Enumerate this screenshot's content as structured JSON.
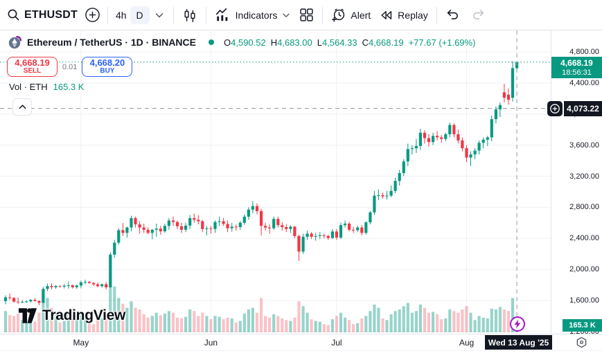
{
  "toolbar": {
    "symbol": "ETHUSDT",
    "timeframe_4h": "4h",
    "timeframe_daily": "D",
    "indicators_label": "Indicators",
    "alert_label": "Alert",
    "replay_label": "Replay"
  },
  "header": {
    "title": "Ethereum / TetherUS · 1D · BINANCE",
    "ohlc": {
      "o_label": "O",
      "o": "4,590.52",
      "h_label": "H",
      "h": "4,683.00",
      "l_label": "L",
      "l": "4,564.33",
      "c_label": "C",
      "c": "4,668.19",
      "change": "+77.67 (+1.69%)"
    }
  },
  "order_panel": {
    "sell_price": "4,668.19",
    "sell_label": "SELL",
    "spread": "0.01",
    "buy_price": "4,668.20",
    "buy_label": "BUY"
  },
  "volume_row": {
    "label": "Vol · ETH",
    "value": "165.3 K"
  },
  "price_axis": {
    "labels": [
      "4,800.00",
      "4,400.00",
      "4,000.00",
      "3,600.00",
      "3,200.00",
      "2,800.00",
      "2,400.00",
      "2,000.00",
      "1,600.00",
      "1,200.00"
    ],
    "last_price": "4,668.19",
    "countdown": "18:56:31",
    "crosshair_price": "4,073.22",
    "volume_value": "165.3 K"
  },
  "time_axis": {
    "months": [
      "May",
      "Jun",
      "Jul",
      "Aug"
    ],
    "crosshair_date": "Wed 13 Aug '25"
  },
  "watermark": "TradingView",
  "colors": {
    "up": "#089981",
    "down": "#f23645",
    "buy_blue": "#2962ff",
    "sell_red": "#f23645",
    "crosshair": "#9598a1",
    "badge_dark": "#131722",
    "grid": "#eef0f3",
    "vol_up": "rgba(8,153,129,0.42)",
    "vol_down": "rgba(242,54,69,0.30)"
  },
  "chart_data": {
    "type": "candlestick",
    "symbol": "ETHUSDT",
    "exchange": "BINANCE",
    "interval": "1D",
    "title": "Ethereum / TetherUS",
    "start_date": "2025-04-13",
    "end_date": "2025-08-13",
    "visible_price_range": [
      1150,
      4850
    ],
    "price_gridlines": [
      4800,
      4400,
      4000,
      3600,
      3200,
      2800,
      2400,
      2000,
      1600,
      1200
    ],
    "month_ticks": [
      {
        "label": "May",
        "index": 18
      },
      {
        "label": "Jun",
        "index": 49
      },
      {
        "label": "Jul",
        "index": 79
      },
      {
        "label": "Aug",
        "index": 110
      }
    ],
    "last_price": 4668.19,
    "last_volume_k": 165.3,
    "crosshair": {
      "price": 4073.22,
      "date": "Wed 13 Aug '25",
      "index": 122
    },
    "volume_unit": "K ETH",
    "candles_format": [
      "open",
      "high",
      "low",
      "close",
      "volume_k"
    ],
    "candles": [
      [
        1592,
        1666,
        1551,
        1641,
        260
      ],
      [
        1641,
        1690,
        1605,
        1632,
        210
      ],
      [
        1632,
        1645,
        1572,
        1585,
        200
      ],
      [
        1585,
        1640,
        1553,
        1577,
        230
      ],
      [
        1577,
        1605,
        1566,
        1583,
        150
      ],
      [
        1583,
        1600,
        1567,
        1588,
        120
      ],
      [
        1588,
        1620,
        1576,
        1608,
        110
      ],
      [
        1608,
        1630,
        1585,
        1594,
        130
      ],
      [
        1594,
        1600,
        1540,
        1571,
        240
      ],
      [
        1571,
        1774,
        1566,
        1749,
        480
      ],
      [
        1749,
        1818,
        1722,
        1786,
        420
      ],
      [
        1786,
        1822,
        1741,
        1771,
        300
      ],
      [
        1771,
        1800,
        1751,
        1786,
        250
      ],
      [
        1786,
        1794,
        1767,
        1779,
        120
      ],
      [
        1779,
        1812,
        1756,
        1790,
        140
      ],
      [
        1790,
        1844,
        1753,
        1796,
        260
      ],
      [
        1796,
        1807,
        1754,
        1771,
        200
      ],
      [
        1771,
        1805,
        1750,
        1793,
        220
      ],
      [
        1793,
        1856,
        1757,
        1834,
        240
      ],
      [
        1834,
        1868,
        1810,
        1839,
        200
      ],
      [
        1839,
        1852,
        1818,
        1825,
        110
      ],
      [
        1825,
        1838,
        1786,
        1808,
        100
      ],
      [
        1808,
        1832,
        1770,
        1784,
        160
      ],
      [
        1784,
        1818,
        1765,
        1810,
        170
      ],
      [
        1810,
        1838,
        1744,
        1770,
        230
      ],
      [
        1770,
        2220,
        1765,
        2190,
        620
      ],
      [
        2190,
        2380,
        2150,
        2345,
        560
      ],
      [
        2345,
        2530,
        2320,
        2506,
        420
      ],
      [
        2506,
        2598,
        2430,
        2470,
        350
      ],
      [
        2470,
        2550,
        2410,
        2540,
        300
      ],
      [
        2540,
        2691,
        2490,
        2660,
        380
      ],
      [
        2660,
        2680,
        2540,
        2580,
        300
      ],
      [
        2580,
        2620,
        2460,
        2540,
        280
      ],
      [
        2540,
        2590,
        2470,
        2510,
        220
      ],
      [
        2510,
        2540,
        2452,
        2470,
        180
      ],
      [
        2470,
        2520,
        2390,
        2510,
        200
      ],
      [
        2510,
        2590,
        2420,
        2525,
        240
      ],
      [
        2525,
        2560,
        2445,
        2490,
        210
      ],
      [
        2490,
        2590,
        2470,
        2560,
        230
      ],
      [
        2560,
        2660,
        2510,
        2630,
        260
      ],
      [
        2630,
        2680,
        2560,
        2610,
        240
      ],
      [
        2610,
        2630,
        2520,
        2556,
        180
      ],
      [
        2556,
        2600,
        2470,
        2510,
        170
      ],
      [
        2510,
        2600,
        2480,
        2565,
        190
      ],
      [
        2565,
        2700,
        2520,
        2660,
        280
      ],
      [
        2660,
        2720,
        2600,
        2640,
        260
      ],
      [
        2640,
        2700,
        2580,
        2620,
        200
      ],
      [
        2620,
        2640,
        2480,
        2520,
        240
      ],
      [
        2520,
        2560,
        2440,
        2528,
        200
      ],
      [
        2528,
        2560,
        2460,
        2520,
        160
      ],
      [
        2520,
        2630,
        2470,
        2610,
        200
      ],
      [
        2610,
        2680,
        2560,
        2620,
        190
      ],
      [
        2620,
        2662,
        2560,
        2585,
        160
      ],
      [
        2585,
        2630,
        2480,
        2530,
        180
      ],
      [
        2530,
        2600,
        2485,
        2550,
        170
      ],
      [
        2550,
        2580,
        2500,
        2545,
        120
      ],
      [
        2545,
        2620,
        2510,
        2600,
        140
      ],
      [
        2600,
        2710,
        2575,
        2680,
        230
      ],
      [
        2680,
        2800,
        2640,
        2770,
        280
      ],
      [
        2770,
        2880,
        2720,
        2815,
        300
      ],
      [
        2815,
        2850,
        2710,
        2750,
        240
      ],
      [
        2750,
        2780,
        2440,
        2560,
        420
      ],
      [
        2560,
        2600,
        2500,
        2540,
        200
      ],
      [
        2540,
        2580,
        2460,
        2530,
        180
      ],
      [
        2530,
        2680,
        2510,
        2650,
        220
      ],
      [
        2650,
        2680,
        2540,
        2570,
        200
      ],
      [
        2570,
        2610,
        2500,
        2545,
        170
      ],
      [
        2545,
        2580,
        2480,
        2520,
        150
      ],
      [
        2520,
        2570,
        2470,
        2550,
        140
      ],
      [
        2550,
        2560,
        2400,
        2430,
        180
      ],
      [
        2430,
        2450,
        2110,
        2230,
        380
      ],
      [
        2230,
        2460,
        2200,
        2420,
        320
      ],
      [
        2420,
        2500,
        2380,
        2460,
        240
      ],
      [
        2460,
        2480,
        2390,
        2420,
        160
      ],
      [
        2420,
        2470,
        2370,
        2430,
        140
      ],
      [
        2430,
        2480,
        2390,
        2440,
        130
      ],
      [
        2440,
        2460,
        2400,
        2430,
        100
      ],
      [
        2430,
        2450,
        2380,
        2405,
        90
      ],
      [
        2405,
        2520,
        2390,
        2488,
        160
      ],
      [
        2488,
        2520,
        2380,
        2410,
        200
      ],
      [
        2410,
        2600,
        2390,
        2570,
        240
      ],
      [
        2570,
        2630,
        2540,
        2590,
        180
      ],
      [
        2590,
        2610,
        2490,
        2510,
        150
      ],
      [
        2510,
        2550,
        2470,
        2505,
        100
      ],
      [
        2505,
        2560,
        2480,
        2540,
        110
      ],
      [
        2540,
        2570,
        2440,
        2470,
        170
      ],
      [
        2470,
        2620,
        2450,
        2607,
        200
      ],
      [
        2607,
        2750,
        2580,
        2735,
        260
      ],
      [
        2735,
        3010,
        2700,
        2950,
        340
      ],
      [
        2950,
        3030,
        2890,
        2955,
        300
      ],
      [
        2955,
        2990,
        2910,
        2940,
        170
      ],
      [
        2940,
        3010,
        2900,
        2950,
        150
      ],
      [
        2950,
        3080,
        2930,
        3010,
        220
      ],
      [
        3010,
        3180,
        2980,
        3140,
        260
      ],
      [
        3140,
        3280,
        3080,
        3240,
        280
      ],
      [
        3240,
        3420,
        3200,
        3390,
        320
      ],
      [
        3390,
        3620,
        3330,
        3550,
        360
      ],
      [
        3550,
        3600,
        3480,
        3560,
        240
      ],
      [
        3560,
        3680,
        3500,
        3590,
        260
      ],
      [
        3590,
        3810,
        3540,
        3760,
        340
      ],
      [
        3760,
        3790,
        3620,
        3690,
        300
      ],
      [
        3690,
        3740,
        3580,
        3640,
        240
      ],
      [
        3640,
        3760,
        3600,
        3720,
        250
      ],
      [
        3720,
        3780,
        3660,
        3700,
        220
      ],
      [
        3700,
        3730,
        3630,
        3680,
        160
      ],
      [
        3680,
        3760,
        3650,
        3740,
        170
      ],
      [
        3740,
        3890,
        3700,
        3860,
        280
      ],
      [
        3860,
        3880,
        3700,
        3740,
        260
      ],
      [
        3740,
        3800,
        3620,
        3660,
        240
      ],
      [
        3660,
        3700,
        3520,
        3560,
        280
      ],
      [
        3560,
        3600,
        3380,
        3440,
        320
      ],
      [
        3440,
        3520,
        3330,
        3480,
        240
      ],
      [
        3480,
        3560,
        3420,
        3530,
        150
      ],
      [
        3530,
        3660,
        3480,
        3630,
        200
      ],
      [
        3630,
        3700,
        3560,
        3670,
        180
      ],
      [
        3670,
        3720,
        3590,
        3700,
        170
      ],
      [
        3700,
        3980,
        3650,
        3935,
        290
      ],
      [
        3935,
        4100,
        3880,
        4060,
        280
      ],
      [
        4060,
        4150,
        3960,
        4116,
        310
      ],
      [
        4280,
        4390,
        4150,
        4210,
        280
      ],
      [
        4250,
        4330,
        4120,
        4185,
        260
      ],
      [
        4210,
        4680,
        4160,
        4591,
        420
      ],
      [
        4590.52,
        4683,
        4564.33,
        4668.19,
        165.3
      ]
    ]
  }
}
